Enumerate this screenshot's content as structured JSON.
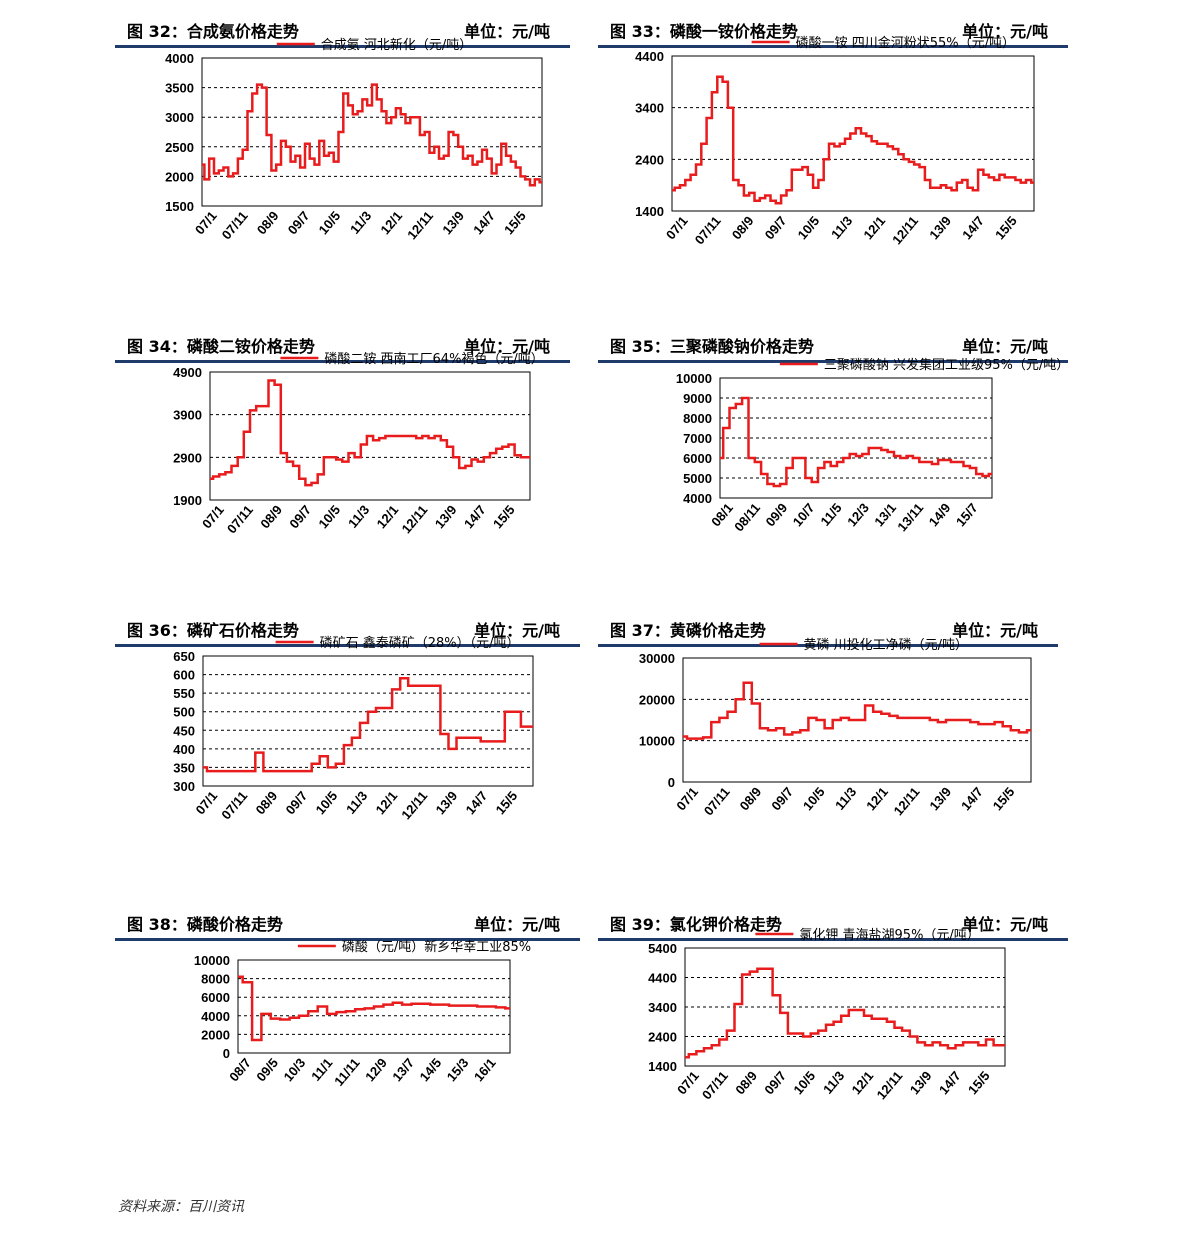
{
  "source": "资料来源：百川资讯",
  "unit_label": "单位：元/吨",
  "chart_data": [
    {
      "id": "c32",
      "type": "line",
      "title": "图 32：合成氨价格走势",
      "unit": "单位：元/吨",
      "legend": "合成氨 河北新化（元/吨）",
      "ylim": [
        1500,
        4000
      ],
      "yticks": [
        "4000",
        "3500",
        "3000",
        "2500",
        "2000",
        "1500"
      ],
      "xticks": [
        "07/1",
        "07/11",
        "08/9",
        "09/7",
        "10/5",
        "11/3",
        "12/1",
        "12/11",
        "13/9",
        "14/7",
        "15/5"
      ],
      "series": [
        {
          "name": "合成氨 河北新化",
          "values": [
            2200,
            1950,
            2300,
            2050,
            2100,
            2150,
            2000,
            2050,
            2300,
            2450,
            3100,
            3400,
            3550,
            3500,
            2700,
            2100,
            2200,
            2600,
            2500,
            2250,
            2350,
            2150,
            2550,
            2300,
            2200,
            2600,
            2350,
            2400,
            2250,
            2750,
            3400,
            3200,
            3050,
            3100,
            3300,
            3200,
            3550,
            3300,
            3100,
            2900,
            3000,
            3150,
            3050,
            2900,
            3000,
            3000,
            2700,
            2750,
            2400,
            2500,
            2300,
            2350,
            2750,
            2700,
            2500,
            2300,
            2350,
            2200,
            2250,
            2450,
            2300,
            2050,
            2200,
            2550,
            2350,
            2250,
            2150,
            2000,
            1950,
            1850,
            1950,
            1900
          ]
        }
      ]
    },
    {
      "id": "c33",
      "type": "line",
      "title": "图 33：磷酸一铵价格走势",
      "unit": "单位：元/吨",
      "legend": "磷酸一铵 四川金河粉状55%（元/吨）",
      "ylim": [
        1400,
        4400
      ],
      "yticks": [
        "4400",
        "3400",
        "2400",
        "1400"
      ],
      "xticks": [
        "07/1",
        "07/11",
        "08/9",
        "09/7",
        "10/5",
        "11/3",
        "12/1",
        "12/11",
        "13/9",
        "14/7",
        "15/5"
      ],
      "series": [
        {
          "name": "磷酸一铵 四川金河粉状55%",
          "values": [
            1800,
            1850,
            1900,
            2000,
            2100,
            2300,
            2700,
            3200,
            3700,
            4000,
            3900,
            3400,
            2000,
            1900,
            1700,
            1750,
            1600,
            1650,
            1700,
            1600,
            1550,
            1700,
            1800,
            2200,
            2200,
            2250,
            2100,
            1850,
            2000,
            2400,
            2700,
            2650,
            2700,
            2800,
            2900,
            3000,
            2900,
            2850,
            2750,
            2700,
            2700,
            2650,
            2600,
            2500,
            2400,
            2350,
            2300,
            2250,
            2000,
            1850,
            1850,
            1900,
            1850,
            1800,
            1950,
            2000,
            1850,
            1800,
            2200,
            2100,
            2050,
            2000,
            2100,
            2050,
            2050,
            2000,
            1950,
            2000,
            1950
          ]
        }
      ]
    },
    {
      "id": "c34",
      "type": "line",
      "title": "图 34：磷酸二铵价格走势",
      "unit": "单位：元/吨",
      "legend": "磷酸二铵 西南工厂64%褐色（元/吨）",
      "ylim": [
        1900,
        4900
      ],
      "yticks": [
        "4900",
        "3900",
        "2900",
        "1900"
      ],
      "xticks": [
        "07/1",
        "07/11",
        "08/9",
        "09/7",
        "10/5",
        "11/3",
        "12/1",
        "12/11",
        "13/9",
        "14/7",
        "15/5"
      ],
      "series": [
        {
          "name": "磷酸二铵 西南工厂64%褐色",
          "values": [
            2400,
            2450,
            2500,
            2550,
            2700,
            2900,
            3500,
            4000,
            4100,
            4100,
            4700,
            4600,
            3000,
            2800,
            2700,
            2400,
            2250,
            2300,
            2500,
            2900,
            2900,
            2850,
            2800,
            3000,
            2900,
            3200,
            3400,
            3300,
            3350,
            3400,
            3400,
            3400,
            3400,
            3400,
            3350,
            3400,
            3350,
            3400,
            3300,
            3150,
            2900,
            2650,
            2700,
            2850,
            2800,
            2900,
            3000,
            3100,
            3150,
            3200,
            2950,
            2900,
            2900
          ]
        }
      ]
    },
    {
      "id": "c35",
      "type": "line",
      "title": "图 35：三聚磷酸钠价格走势",
      "unit": "单位：元/吨",
      "legend": "三聚磷酸钠 兴发集团工业级95%（元/吨）",
      "ylim": [
        4000,
        10000
      ],
      "yticks": [
        "10000",
        "9000",
        "8000",
        "7000",
        "6000",
        "5000",
        "4000"
      ],
      "xticks": [
        "08/1",
        "08/11",
        "09/9",
        "10/7",
        "11/5",
        "12/3",
        "13/1",
        "13/11",
        "14/9",
        "15/7"
      ],
      "series": [
        {
          "name": "三聚磷酸钠 兴发集团工业级95%",
          "values": [
            6000,
            7500,
            8500,
            8700,
            9000,
            6000,
            5800,
            5200,
            4700,
            4600,
            4700,
            5500,
            6000,
            6000,
            5000,
            4800,
            5500,
            5800,
            5600,
            5800,
            6000,
            6200,
            6100,
            6200,
            6500,
            6500,
            6400,
            6300,
            6100,
            6000,
            6100,
            6000,
            5800,
            5800,
            5700,
            5900,
            5900,
            5800,
            5800,
            5600,
            5500,
            5200,
            5100,
            5200
          ]
        }
      ]
    },
    {
      "id": "c36",
      "type": "line",
      "title": "图 36：磷矿石价格走势",
      "unit": "单位：元/吨",
      "legend": "磷矿石 鑫泰磷矿（28%）（元/吨）",
      "ylim": [
        300,
        650
      ],
      "yticks": [
        "650",
        "600",
        "550",
        "500",
        "450",
        "400",
        "350",
        "300"
      ],
      "xticks": [
        "07/1",
        "07/11",
        "08/9",
        "09/7",
        "10/5",
        "11/3",
        "12/1",
        "12/11",
        "13/9",
        "14/7",
        "15/5"
      ],
      "series": [
        {
          "name": "磷矿石 鑫泰磷矿（28%）",
          "values": [
            350,
            340,
            340,
            340,
            340,
            340,
            340,
            390,
            340,
            340,
            340,
            340,
            340,
            340,
            360,
            380,
            350,
            360,
            410,
            430,
            470,
            500,
            510,
            510,
            560,
            590,
            570,
            570,
            570,
            570,
            440,
            400,
            430,
            430,
            430,
            420,
            420,
            420,
            500,
            500,
            460,
            460
          ]
        }
      ]
    },
    {
      "id": "c37",
      "type": "line",
      "title": "图 37：黄磷价格走势",
      "unit": "单位：元/吨",
      "legend": "黄磷 川投化工净磷（元/吨）",
      "ylim": [
        0,
        30000
      ],
      "yticks": [
        "30000",
        "20000",
        "10000",
        "0"
      ],
      "xticks": [
        "07/1",
        "07/11",
        "08/9",
        "09/7",
        "10/5",
        "11/3",
        "12/1",
        "12/11",
        "13/9",
        "14/7",
        "15/5"
      ],
      "series": [
        {
          "name": "黄磷 川投化工净磷",
          "values": [
            11000,
            10500,
            10500,
            10800,
            14500,
            15500,
            17000,
            20000,
            24000,
            19000,
            13000,
            12500,
            13000,
            11500,
            12000,
            12500,
            15500,
            15000,
            13000,
            15000,
            15500,
            15000,
            15000,
            18500,
            17000,
            16500,
            16000,
            15500,
            15500,
            15500,
            15500,
            15000,
            14500,
            15000,
            15000,
            15000,
            14500,
            14000,
            14000,
            14500,
            13500,
            12500,
            12000,
            12500
          ]
        }
      ]
    },
    {
      "id": "c38",
      "type": "line",
      "title": "图 38：磷酸价格走势",
      "unit": "单位：元/吨",
      "legend": "磷酸（元/吨）新乡华幸工业85%",
      "ylim": [
        0,
        10000
      ],
      "yticks": [
        "10000",
        "8000",
        "6000",
        "4000",
        "2000",
        "0"
      ],
      "xticks": [
        "08/7",
        "09/5",
        "10/3",
        "11/1",
        "11/11",
        "12/9",
        "13/7",
        "14/5",
        "15/3",
        "16/1"
      ],
      "series": [
        {
          "name": "磷酸 新乡华幸工业85%",
          "values": [
            8200,
            7600,
            1400,
            4200,
            3700,
            3600,
            3800,
            4000,
            4500,
            5000,
            4200,
            4400,
            4500,
            4700,
            4800,
            5000,
            5200,
            5400,
            5200,
            5300,
            5300,
            5200,
            5200,
            5100,
            5100,
            5100,
            5000,
            5000,
            4900,
            4800
          ]
        }
      ]
    },
    {
      "id": "c39",
      "type": "line",
      "title": "图 39：氯化钾价格走势",
      "unit": "单位：元/吨",
      "legend": "氯化钾 青海盐湖95%（元/吨）",
      "ylim": [
        1400,
        5400
      ],
      "yticks": [
        "5400",
        "4400",
        "3400",
        "2400",
        "1400"
      ],
      "xticks": [
        "07/1",
        "07/11",
        "08/9",
        "09/7",
        "10/5",
        "11/3",
        "12/1",
        "12/11",
        "13/9",
        "14/7",
        "15/5"
      ],
      "series": [
        {
          "name": "氯化钾 青海盐湖95%",
          "values": [
            1700,
            1800,
            1900,
            2000,
            2100,
            2300,
            2600,
            3500,
            4500,
            4600,
            4700,
            4700,
            3800,
            3200,
            2500,
            2500,
            2400,
            2500,
            2600,
            2800,
            2900,
            3100,
            3300,
            3300,
            3100,
            3000,
            3000,
            2900,
            2700,
            2600,
            2400,
            2200,
            2100,
            2200,
            2100,
            2000,
            2100,
            2200,
            2200,
            2100,
            2300,
            2100,
            2100
          ]
        }
      ]
    }
  ]
}
